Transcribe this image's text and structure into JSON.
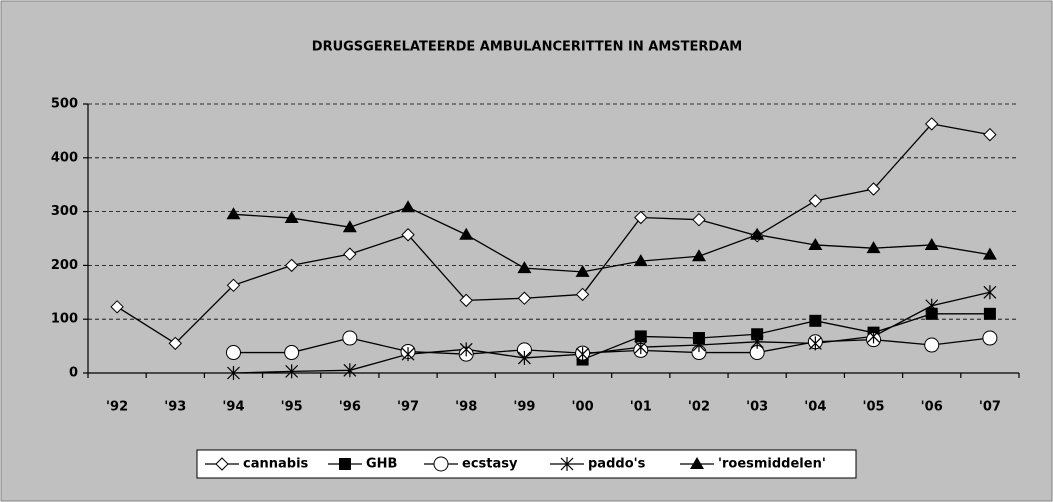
{
  "chart_data": {
    "type": "line",
    "title": "DRUGSGERELATEERDE AMBULANCERITTEN IN AMSTERDAM",
    "categories": [
      "'92",
      "'93",
      "'94",
      "'95",
      "'96",
      "'97",
      "'98",
      "'99",
      "'00",
      "'01",
      "'02",
      "'03",
      "'04",
      "'05",
      "'06",
      "'07"
    ],
    "series": [
      {
        "name": "cannabis",
        "color": "#000000",
        "marker": "diamond",
        "values": [
          123,
          55,
          163,
          200,
          221,
          257,
          135,
          139,
          146,
          289,
          285,
          255,
          320,
          342,
          463,
          443
        ]
      },
      {
        "name": "GHB",
        "color": "#000000",
        "marker": "square",
        "values": [
          null,
          null,
          null,
          null,
          null,
          null,
          null,
          null,
          25,
          68,
          65,
          72,
          97,
          75,
          110,
          110
        ]
      },
      {
        "name": "ecstasy",
        "color": "#000000",
        "marker": "circle",
        "values": [
          null,
          null,
          38,
          38,
          65,
          40,
          35,
          43,
          37,
          42,
          38,
          38,
          58,
          62,
          52,
          65
        ]
      },
      {
        "name": "paddo's",
        "color": "#000000",
        "marker": "asterisk",
        "values": [
          null,
          null,
          0,
          3,
          5,
          35,
          44,
          28,
          35,
          48,
          52,
          58,
          55,
          68,
          125,
          150
        ]
      },
      {
        "name": "'roesmiddelen'",
        "color": "#000000",
        "marker": "triangle",
        "values": [
          null,
          null,
          295,
          288,
          271,
          308,
          257,
          195,
          188,
          208,
          217,
          257,
          238,
          232,
          238,
          220
        ]
      }
    ],
    "ylim": [
      0,
      500
    ],
    "yticks": [
      0,
      100,
      200,
      300,
      400,
      500
    ],
    "grid": true,
    "legend": "bottom"
  }
}
